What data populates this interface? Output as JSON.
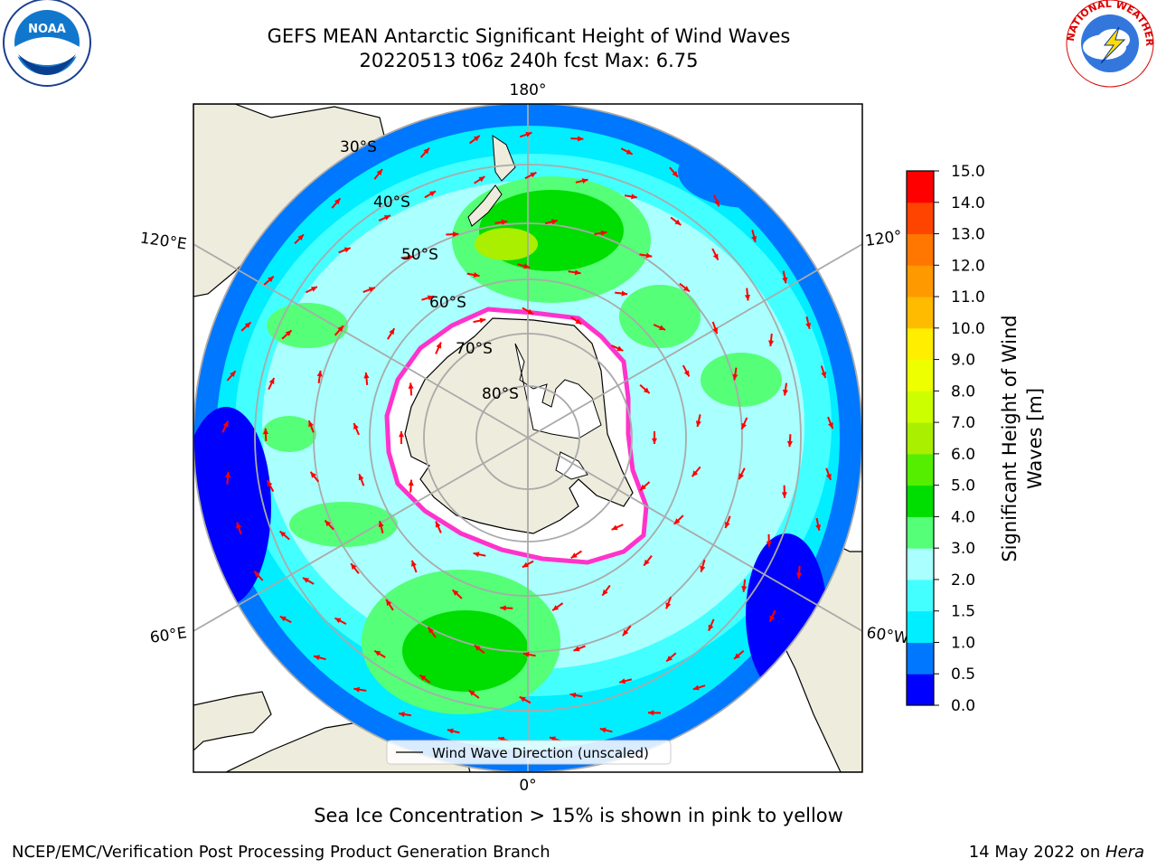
{
  "title": {
    "line1": "GEFS MEAN Antarctic Significant Height of Wind Waves",
    "line2": "20220513 t06z 240h fcst   Max: 6.75"
  },
  "map": {
    "projection": "south-polar-stereographic",
    "lon_labels": {
      "top": "180°",
      "bottom": "0°",
      "left_upper": "120°E",
      "left_lower": "60°E",
      "right_upper": "120°",
      "right_lower": "60°W"
    },
    "lat_labels": [
      "30°S",
      "40°S",
      "50°S",
      "60°S",
      "70°S",
      "80°S"
    ],
    "legend_label": "Wind Wave Direction (unscaled)"
  },
  "colorbar": {
    "title": "Significant Height of Wind Waves [m]",
    "tick_labels": [
      "15.0",
      "14.0",
      "13.0",
      "12.0",
      "11.0",
      "10.0",
      "9.0",
      "8.0",
      "7.0",
      "6.0",
      "5.0",
      "4.0",
      "3.0",
      "2.0",
      "1.5",
      "1.0",
      "0.5",
      "0.0"
    ],
    "colors": [
      "#0000ff",
      "#0077ff",
      "#00eeff",
      "#44ffff",
      "#aaffff",
      "#55ff77",
      "#00dd00",
      "#55ee00",
      "#aaee00",
      "#ccff00",
      "#eeff00",
      "#ffee00",
      "#ffbb00",
      "#ff9900",
      "#ff7700",
      "#ff4400",
      "#ff0000"
    ]
  },
  "caption": "Sea Ice Concentration > 15% is shown in pink to yellow",
  "footer": {
    "left": "NCEP/EMC/Verification Post Processing Product Generation Branch",
    "right_prefix": "14 May 2022 on ",
    "right_host": "Hera"
  },
  "logos": {
    "left": "NOAA",
    "right_text": "NATIONAL WEATHER SERVICE"
  },
  "colors": {
    "land": "#eeecdc",
    "arrow": "#ff0000",
    "ice_edge": "#ff33cc",
    "grid": "#aaaaaa"
  }
}
